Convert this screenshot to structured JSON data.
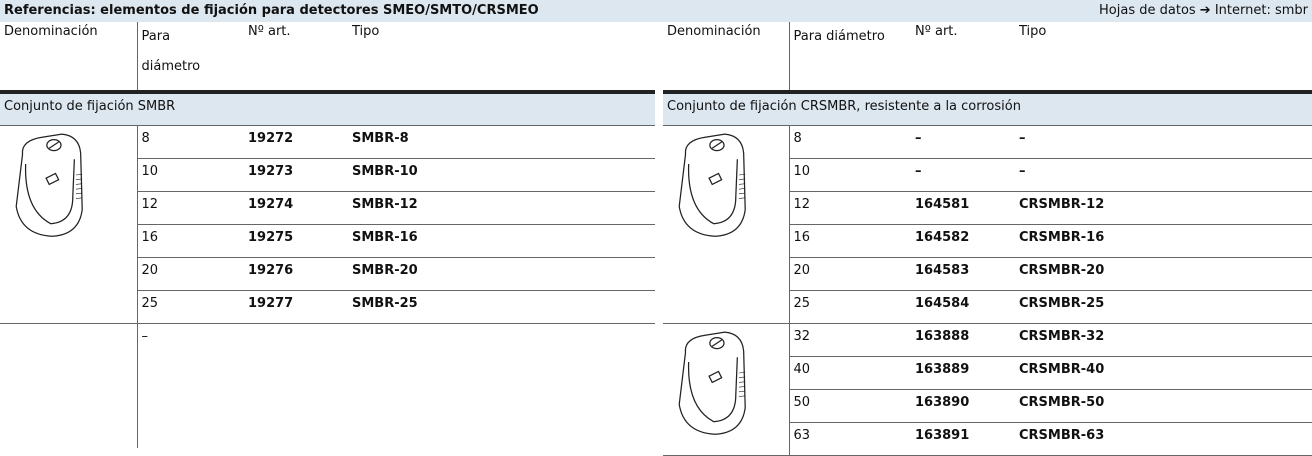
{
  "header": {
    "title": "Referencias: elementos de fijación para detectores SMEO/SMTO/CRSMEO",
    "link": "Hojas de datos ➔ Internet: smbr"
  },
  "tables": [
    {
      "columns": [
        "Denominación",
        "Para diámetro",
        "Nº art.",
        "Tipo"
      ],
      "section": "Conjunto de fijación SMBR",
      "groups": [
        {
          "rows": [
            [
              "8",
              "19272",
              "SMBR-8"
            ],
            [
              "10",
              "19273",
              "SMBR-10"
            ],
            [
              "12",
              "19274",
              "SMBR-12"
            ],
            [
              "16",
              "19275",
              "SMBR-16"
            ],
            [
              "20",
              "19276",
              "SMBR-20"
            ],
            [
              "25",
              "19277",
              "SMBR-25"
            ]
          ]
        }
      ],
      "note": "–"
    },
    {
      "columns": [
        "Denominación",
        "Para diámetro",
        "Nº art.",
        "Tipo"
      ],
      "section": "Conjunto de fijación CRSMBR, resistente a la corrosión",
      "groups": [
        {
          "rows": [
            [
              "8",
              "–",
              "–"
            ],
            [
              "10",
              "–",
              "–"
            ],
            [
              "12",
              "164581",
              "CRSMBR-12"
            ],
            [
              "16",
              "164582",
              "CRSMBR-16"
            ],
            [
              "20",
              "164583",
              "CRSMBR-20"
            ],
            [
              "25",
              "164584",
              "CRSMBR-25"
            ]
          ]
        },
        {
          "rows": [
            [
              "32",
              "163888",
              "CRSMBR-32"
            ],
            [
              "40",
              "163889",
              "CRSMBR-40"
            ],
            [
              "50",
              "163890",
              "CRSMBR-50"
            ],
            [
              "63",
              "163891",
              "CRSMBR-63"
            ]
          ]
        }
      ]
    }
  ]
}
